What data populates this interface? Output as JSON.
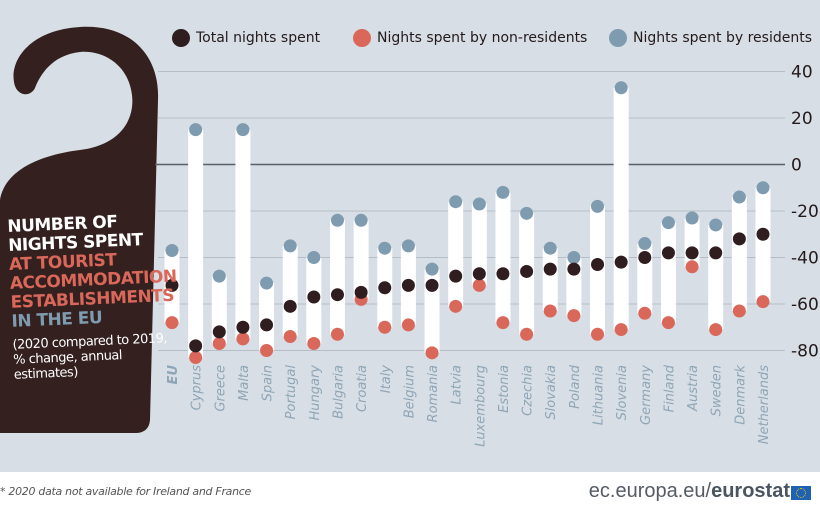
{
  "legend": {
    "total": {
      "label": "Total nights spent",
      "color": "#2f1d20"
    },
    "non_residents": {
      "label": "Nights spent by non-residents",
      "color": "#d9685a"
    },
    "residents": {
      "label": "Nights spent by residents",
      "color": "#7f9bb0"
    }
  },
  "hanger": {
    "line1": "NUMBER OF",
    "line2": "NIGHTS SPENT",
    "line3": "AT TOURIST",
    "line4": "ACCOMMODATION",
    "line5": "ESTABLISHMENTS",
    "line6": "IN THE EU",
    "sub1": "(2020 compared to 2019,",
    "sub2": "% change, annual",
    "sub3": "estimates)"
  },
  "footer": {
    "note": "* 2020 data not available for Ireland and France",
    "domain": "ec.europa.eu/",
    "brand": "eurostat"
  },
  "colors": {
    "background": "#d8dee5",
    "hanger": "#33201f",
    "bar": "#ffffff",
    "grid": "#b5bdc6",
    "zero_line": "#5a6068",
    "axis_text": "#231a1c",
    "category_text": "#8ea5b6"
  },
  "chart_data": {
    "type": "dot-range",
    "title": "Number of nights spent at tourist accommodation establishments in the EU",
    "subtitle": "(2020 compared to 2019, % change, annual estimates)",
    "xlabel": "",
    "ylabel": "% change",
    "ylim": [
      -80,
      40
    ],
    "yticks": [
      40,
      20,
      0,
      -20,
      -40,
      -60,
      -80
    ],
    "grid": true,
    "legend_position": "top",
    "categories": [
      "EU",
      "Cyprus",
      "Greece",
      "Malta",
      "Spain",
      "Portugal",
      "Hungary",
      "Bulgaria",
      "Croatia",
      "Italy",
      "Belgium",
      "Romania",
      "Latvia",
      "Luxembourg",
      "Estonia",
      "Czechia",
      "Slovakia",
      "Poland",
      "Lithuania",
      "Slovenia",
      "Germany",
      "Finland",
      "Austria",
      "Sweden",
      "Denmark",
      "Netherlands"
    ],
    "series": [
      {
        "name": "Total nights spent",
        "values": [
          -52,
          -78,
          -72,
          -70,
          -69,
          -61,
          -57,
          -56,
          -55,
          -53,
          -52,
          -52,
          -48,
          -47,
          -47,
          -46,
          -45,
          -45,
          -43,
          -42,
          -40,
          -38,
          -38,
          -38,
          -32,
          -30
        ]
      },
      {
        "name": "Nights spent by non-residents",
        "values": [
          -68,
          -83,
          -77,
          -75,
          -80,
          -74,
          -77,
          -73,
          -58,
          -70,
          -69,
          -81,
          -61,
          -52,
          -68,
          -73,
          -63,
          -65,
          -73,
          -71,
          -64,
          -68,
          -44,
          -71,
          -63,
          -59
        ]
      },
      {
        "name": "Nights spent by residents",
        "values": [
          -37,
          15,
          -48,
          15,
          -51,
          -35,
          -40,
          -24,
          -24,
          -36,
          -35,
          -45,
          -16,
          -17,
          -12,
          -21,
          -36,
          -40,
          -18,
          33,
          -34,
          -25,
          -23,
          -26,
          -14,
          -10
        ]
      }
    ]
  }
}
